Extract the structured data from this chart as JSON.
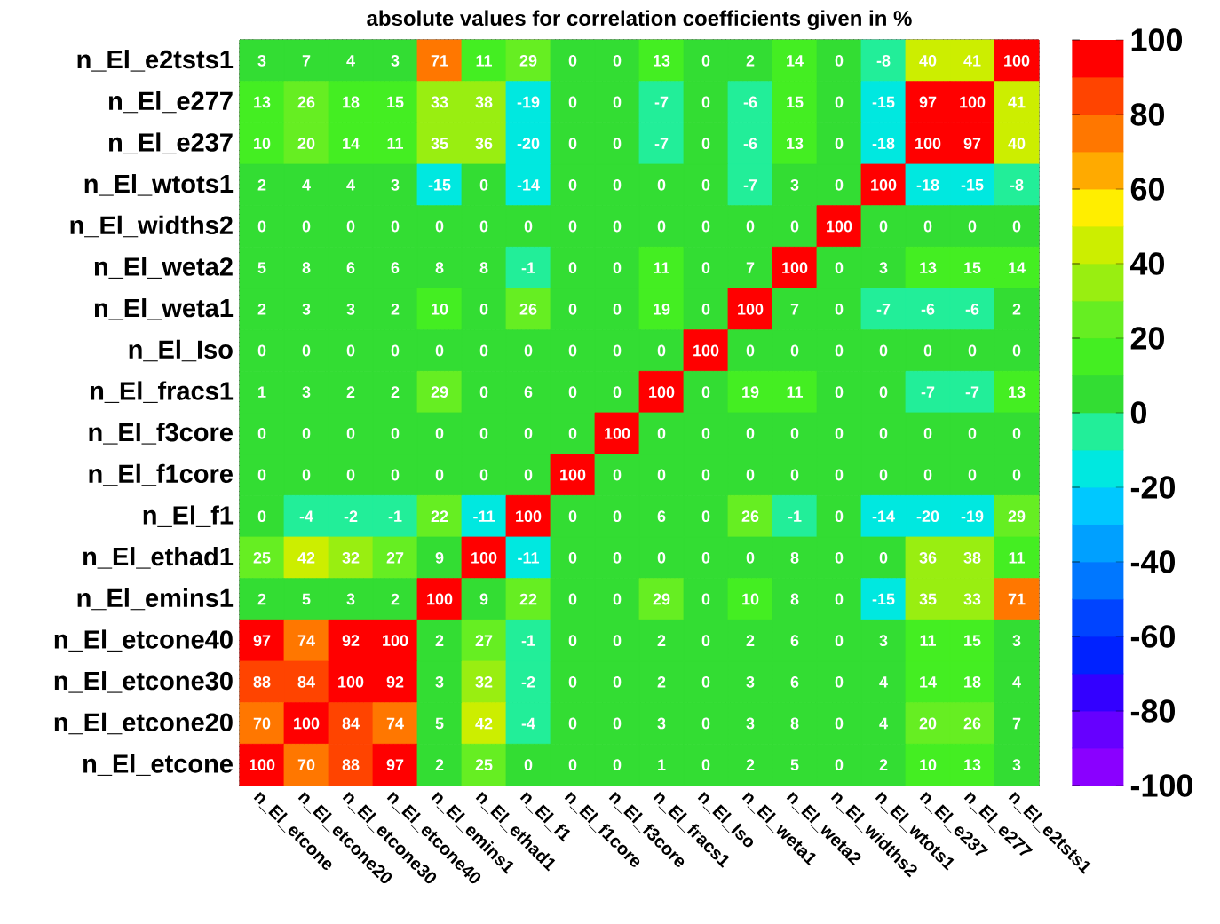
{
  "chart_data": {
    "type": "heatmap",
    "title": "absolute values for correlation coefficients given in %",
    "categories": [
      "n_El_etcone",
      "n_El_etcone20",
      "n_El_etcone30",
      "n_El_etcone40",
      "n_El_emins1",
      "n_El_ethad1",
      "n_El_f1",
      "n_El_f1core",
      "n_El_f3core",
      "n_El_fracs1",
      "n_El_Iso",
      "n_El_weta1",
      "n_El_weta2",
      "n_El_widths2",
      "n_El_wtots1",
      "n_El_e237",
      "n_El_e277",
      "n_El_e2tsts1"
    ],
    "y_categories": [
      "n_El_e2tsts1",
      "n_El_e277",
      "n_El_e237",
      "n_El_wtots1",
      "n_El_widths2",
      "n_El_weta2",
      "n_El_weta1",
      "n_El_Iso",
      "n_El_fracs1",
      "n_El_f3core",
      "n_El_f1core",
      "n_El_f1",
      "n_El_ethad1",
      "n_El_emins1",
      "n_El_etcone40",
      "n_El_etcone30",
      "n_El_etcone20",
      "n_El_etcone"
    ],
    "cells": [
      [
        3,
        7,
        4,
        3,
        71,
        11,
        29,
        0,
        0,
        13,
        0,
        2,
        14,
        0,
        -8,
        40,
        41,
        100
      ],
      [
        13,
        26,
        18,
        15,
        33,
        38,
        -19,
        0,
        0,
        -7,
        0,
        -6,
        15,
        0,
        -15,
        97,
        100,
        41
      ],
      [
        10,
        20,
        14,
        11,
        35,
        36,
        -20,
        0,
        0,
        -7,
        0,
        -6,
        13,
        0,
        -18,
        100,
        97,
        40
      ],
      [
        2,
        4,
        4,
        3,
        -15,
        0,
        -14,
        0,
        0,
        0,
        0,
        -7,
        3,
        0,
        100,
        -18,
        -15,
        -8
      ],
      [
        0,
        0,
        0,
        0,
        0,
        0,
        0,
        0,
        0,
        0,
        0,
        0,
        0,
        100,
        0,
        0,
        0,
        0
      ],
      [
        5,
        8,
        6,
        6,
        8,
        8,
        -1,
        0,
        0,
        11,
        0,
        7,
        100,
        0,
        3,
        13,
        15,
        14
      ],
      [
        2,
        3,
        3,
        2,
        10,
        0,
        26,
        0,
        0,
        19,
        0,
        100,
        7,
        0,
        -7,
        -6,
        -6,
        2
      ],
      [
        0,
        0,
        0,
        0,
        0,
        0,
        0,
        0,
        0,
        0,
        100,
        0,
        0,
        0,
        0,
        0,
        0,
        0
      ],
      [
        1,
        3,
        2,
        2,
        29,
        0,
        6,
        0,
        0,
        100,
        0,
        19,
        11,
        0,
        0,
        -7,
        -7,
        13
      ],
      [
        0,
        0,
        0,
        0,
        0,
        0,
        0,
        0,
        100,
        0,
        0,
        0,
        0,
        0,
        0,
        0,
        0,
        0
      ],
      [
        0,
        0,
        0,
        0,
        0,
        0,
        0,
        100,
        0,
        0,
        0,
        0,
        0,
        0,
        0,
        0,
        0,
        0
      ],
      [
        0,
        -4,
        -2,
        -1,
        22,
        -11,
        100,
        0,
        0,
        6,
        0,
        26,
        -1,
        0,
        -14,
        -20,
        -19,
        29
      ],
      [
        25,
        42,
        32,
        27,
        9,
        100,
        -11,
        0,
        0,
        0,
        0,
        0,
        8,
        0,
        0,
        36,
        38,
        11
      ],
      [
        2,
        5,
        3,
        2,
        100,
        9,
        22,
        0,
        0,
        29,
        0,
        10,
        8,
        0,
        -15,
        35,
        33,
        71
      ],
      [
        97,
        74,
        92,
        100,
        2,
        27,
        -1,
        0,
        0,
        2,
        0,
        2,
        6,
        0,
        3,
        11,
        15,
        3
      ],
      [
        88,
        84,
        100,
        92,
        3,
        32,
        -2,
        0,
        0,
        2,
        0,
        3,
        6,
        0,
        4,
        14,
        18,
        4
      ],
      [
        70,
        100,
        84,
        74,
        5,
        42,
        -4,
        0,
        0,
        3,
        0,
        3,
        8,
        0,
        4,
        20,
        26,
        7
      ],
      [
        100,
        70,
        88,
        97,
        2,
        25,
        0,
        0,
        0,
        1,
        0,
        2,
        5,
        0,
        2,
        10,
        13,
        3
      ]
    ],
    "data_labels": true,
    "grid": true,
    "clim": [
      -100,
      100
    ],
    "cticks": [
      -100,
      -80,
      -60,
      -40,
      -20,
      0,
      20,
      40,
      60,
      80,
      100
    ]
  }
}
